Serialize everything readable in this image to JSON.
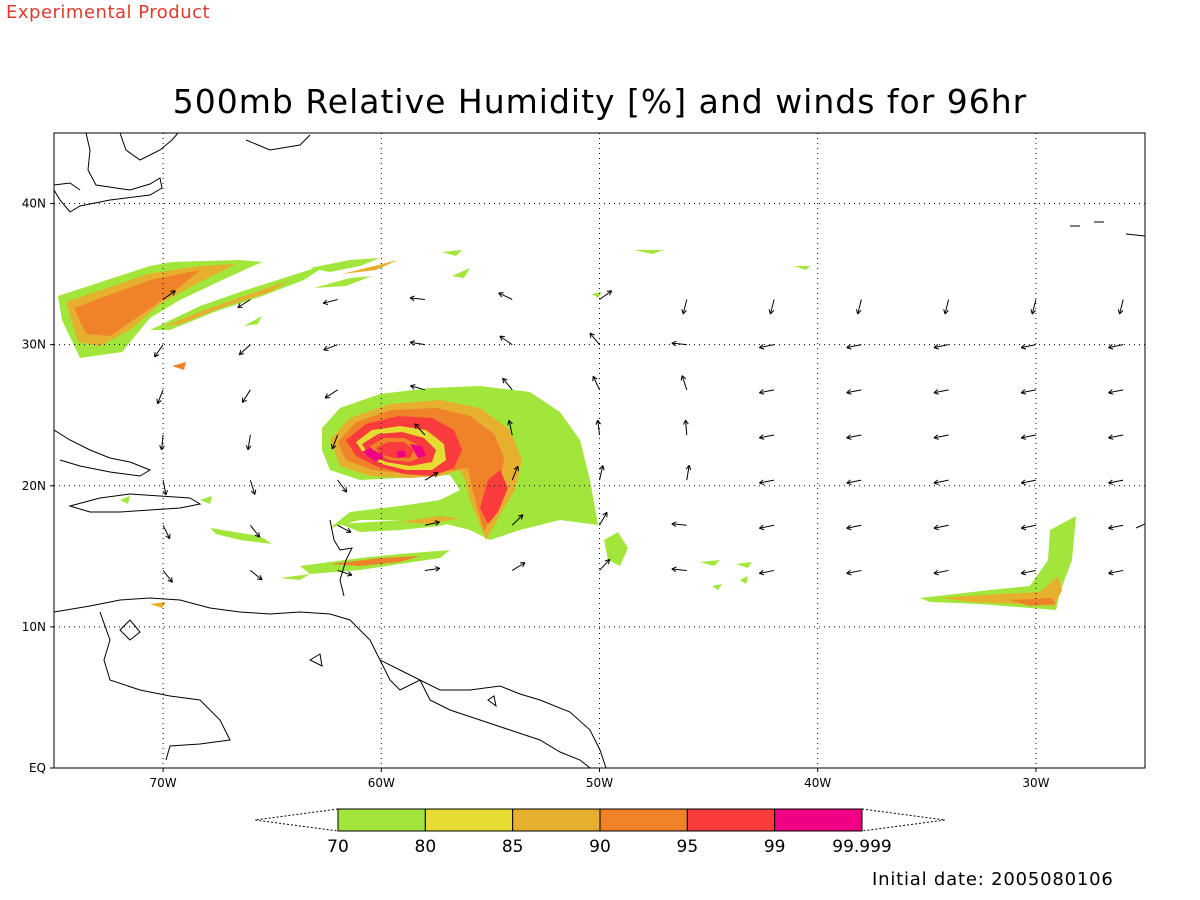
{
  "banner": "Experimental Product",
  "title": "500mb Relative Humidity [%] and winds for 96hr",
  "footer": "Initial date: 2005080106",
  "map": {
    "lon_range": [
      -75,
      -25
    ],
    "lat_range": [
      0,
      45
    ],
    "lon_ticks": [
      {
        "value": -70,
        "label": "70W"
      },
      {
        "value": -60,
        "label": "60W"
      },
      {
        "value": -50,
        "label": "50W"
      },
      {
        "value": -40,
        "label": "40W"
      },
      {
        "value": -30,
        "label": "30W"
      }
    ],
    "lat_ticks": [
      {
        "value": 0,
        "label": "EQ"
      },
      {
        "value": 10,
        "label": "10N"
      },
      {
        "value": 20,
        "label": "20N"
      },
      {
        "value": 30,
        "label": "30N"
      },
      {
        "value": 40,
        "label": "40N"
      }
    ],
    "grid": "dotted",
    "storm_center": {
      "lon": -59.2,
      "lat": 22.5
    }
  },
  "colorbar": {
    "levels": [
      "70",
      "80",
      "85",
      "90",
      "95",
      "99",
      "99.999"
    ],
    "colors": [
      "#a2e63c",
      "#e6dc32",
      "#e6af2e",
      "#f0822a",
      "#fa3c3c",
      "#f00082"
    ]
  },
  "colors": {
    "banner": "#e03a2a",
    "rh_70_80": "#a2e63c",
    "rh_80_85": "#e6dc32",
    "rh_85_90": "#e6af2e",
    "rh_90_95": "#f0822a",
    "rh_95_99": "#fa3c3c",
    "rh_99_100": "#f00082"
  }
}
